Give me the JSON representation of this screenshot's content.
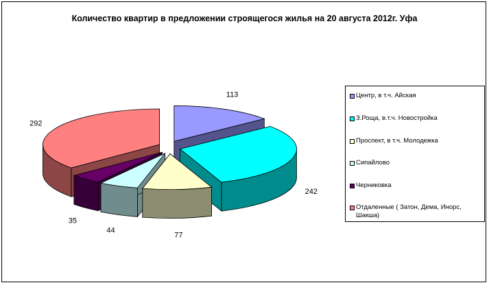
{
  "chart_data": {
    "type": "pie",
    "title": "Количество квартир в предложении строящегося жилья на 20 августа 2012г. Уфа",
    "exploded": true,
    "view": "3d",
    "legend_position": "right",
    "categories": [
      "Центр, в т.ч. Айская",
      "З.Роща, в.т.ч. Новостройка",
      "Проспект, в т.ч. Молодежка",
      "Сипайлово",
      "Черниковка",
      "Отдаленные ( Затон, Дема, Инорс, Шакша)"
    ],
    "values": [
      113,
      242,
      77,
      44,
      35,
      292
    ],
    "colors": [
      "#9999ff",
      "#00ffff",
      "#ffffcc",
      "#ccffff",
      "#660066",
      "#ff8080"
    ]
  }
}
